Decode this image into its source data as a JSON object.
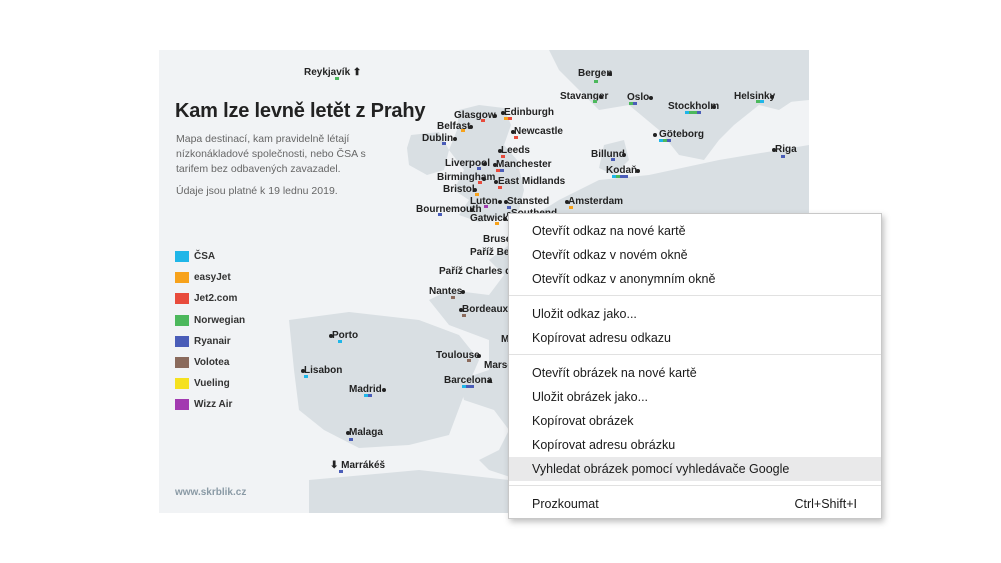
{
  "map": {
    "title": "Kam lze levně letět z Prahy",
    "description": "Mapa destinací, kam pravidelně létají nízkonákladové společnosti, nebo ČSA s tarifem bez odbavených zavazadel.",
    "validity": "Údaje jsou platné k 19 lednu 2019.",
    "source": "www.skrblik.cz",
    "land_color": "#d9dfe3",
    "legend": [
      {
        "label": "ČSA",
        "color": "#1fb6e8"
      },
      {
        "label": "easyJet",
        "color": "#f7a21b"
      },
      {
        "label": "Jet2.com",
        "color": "#e84b3c"
      },
      {
        "label": "Norwegian",
        "color": "#4cb85c"
      },
      {
        "label": "Ryanair",
        "color": "#4a5db8"
      },
      {
        "label": "Volotea",
        "color": "#8a6a5c"
      },
      {
        "label": "Vueling",
        "color": "#f5e11f"
      },
      {
        "label": "Wizz Air",
        "color": "#a23ab0"
      }
    ],
    "cities": [
      {
        "name": "Reykjavík ⬆",
        "airlines": [
          "Norwegian"
        ]
      },
      {
        "name": "Bergen",
        "airlines": [
          "Norwegian"
        ]
      },
      {
        "name": "Stavanger",
        "airlines": [
          "Norwegian"
        ]
      },
      {
        "name": "Oslo",
        "airlines": [
          "Norwegian",
          "Ryanair"
        ]
      },
      {
        "name": "Stockholm",
        "airlines": [
          "ČSA",
          "Norwegian",
          "Norwegian",
          "Ryanair"
        ]
      },
      {
        "name": "Helsinky",
        "airlines": [
          "Norwegian",
          "ČSA"
        ]
      },
      {
        "name": "Glasgow",
        "airlines": [
          "Jet2.com"
        ]
      },
      {
        "name": "Edinburgh",
        "airlines": [
          "easyJet",
          "Jet2.com"
        ]
      },
      {
        "name": "Belfast",
        "airlines": [
          "easyJet"
        ]
      },
      {
        "name": "Newcastle",
        "airlines": [
          "Jet2.com"
        ]
      },
      {
        "name": "Göteborg",
        "airlines": [
          "ČSA",
          "Norwegian",
          "Ryanair"
        ]
      },
      {
        "name": "Dublin",
        "airlines": [
          "Ryanair"
        ]
      },
      {
        "name": "Leeds",
        "airlines": [
          "Jet2.com"
        ]
      },
      {
        "name": "Billund",
        "airlines": [
          "Ryanair"
        ]
      },
      {
        "name": "Riga",
        "airlines": [
          "Ryanair"
        ]
      },
      {
        "name": "Liverpool",
        "airlines": [
          "Ryanair"
        ]
      },
      {
        "name": "Manchester",
        "airlines": [
          "Jet2.com",
          "Ryanair"
        ]
      },
      {
        "name": "Kodaň",
        "airlines": [
          "ČSA",
          "Norwegian",
          "Ryanair",
          "Ryanair"
        ]
      },
      {
        "name": "Birmingham",
        "airlines": [
          "Jet2.com"
        ]
      },
      {
        "name": "East Midlands",
        "airlines": [
          "Jet2.com"
        ]
      },
      {
        "name": "Bristol",
        "airlines": [
          "easyJet"
        ]
      },
      {
        "name": "Luton",
        "airlines": [
          "Wizz Air"
        ]
      },
      {
        "name": "Stansted",
        "airlines": [
          "Ryanair"
        ]
      },
      {
        "name": "Amsterdam",
        "airlines": [
          "easyJet"
        ]
      },
      {
        "name": "Bournemouth",
        "airlines": [
          "Ryanair"
        ]
      },
      {
        "name": "Gatwick",
        "airlines": [
          "easyJet"
        ]
      },
      {
        "name": "Southend",
        "airlines": []
      },
      {
        "name": "Bruse",
        "airlines": []
      },
      {
        "name": "Paříž Beau",
        "airlines": []
      },
      {
        "name": "Paříž Charles de G",
        "airlines": []
      },
      {
        "name": "Nantes",
        "airlines": [
          "Volotea"
        ]
      },
      {
        "name": "Bordeaux",
        "airlines": [
          "Volotea"
        ]
      },
      {
        "name": "Porto",
        "airlines": [
          "ČSA"
        ]
      },
      {
        "name": "Lisabon",
        "airlines": [
          "ČSA"
        ]
      },
      {
        "name": "Toulouse",
        "airlines": [
          "Volotea"
        ]
      },
      {
        "name": "Marse",
        "airlines": []
      },
      {
        "name": "Madrid",
        "airlines": [
          "ČSA",
          "Ryanair"
        ]
      },
      {
        "name": "Barcelona",
        "airlines": [
          "ČSA",
          "Ryanair",
          "Ryanair"
        ]
      },
      {
        "name": "Malaga",
        "airlines": [
          "Ryanair"
        ]
      },
      {
        "name": "⬇ Marrákéš",
        "airlines": [
          "Ryanair"
        ]
      },
      {
        "name": "M",
        "airlines": []
      }
    ]
  },
  "context_menu": {
    "groups": [
      [
        {
          "label": "Otevřít odkaz na nové kartě",
          "shortcut": ""
        },
        {
          "label": "Otevřít odkaz v novém okně",
          "shortcut": ""
        },
        {
          "label": "Otevřít odkaz v anonymním okně",
          "shortcut": ""
        }
      ],
      [
        {
          "label": "Uložit odkaz jako...",
          "shortcut": ""
        },
        {
          "label": "Kopírovat adresu odkazu",
          "shortcut": ""
        }
      ],
      [
        {
          "label": "Otevřít obrázek na nové kartě",
          "shortcut": ""
        },
        {
          "label": "Uložit obrázek jako...",
          "shortcut": ""
        },
        {
          "label": "Kopírovat obrázek",
          "shortcut": ""
        },
        {
          "label": "Kopírovat adresu obrázku",
          "shortcut": ""
        },
        {
          "label": "Vyhledat obrázek pomocí vyhledávače Google",
          "shortcut": "",
          "highlighted": true
        }
      ],
      [
        {
          "label": "Prozkoumat",
          "shortcut": "Ctrl+Shift+I"
        }
      ]
    ]
  }
}
